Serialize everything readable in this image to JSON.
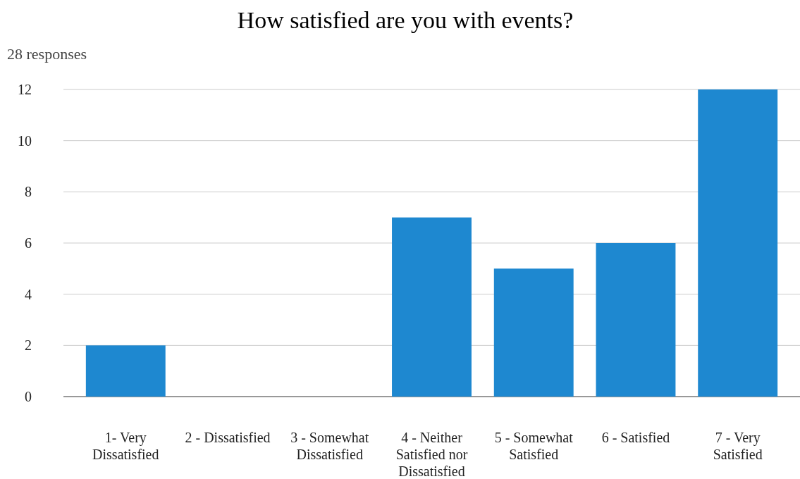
{
  "chart_data": {
    "type": "bar",
    "title": "How satisfied are you with events?",
    "subtitle": "28 responses",
    "categories": [
      "1- Very Dissatisfied",
      "2 - Dissatisfied",
      "3 - Somewhat Dissatisfied",
      "4 - Neither Satisfied nor Dissatisfied",
      "5 - Somewhat Satisfied",
      "6 - Satisfied",
      "7 - Very Satisfied"
    ],
    "values": [
      2,
      0,
      0,
      7,
      5,
      6,
      12
    ],
    "color": "#1e88d0",
    "ylim": [
      0,
      12
    ],
    "yticks": [
      0,
      2,
      4,
      6,
      8,
      10,
      12
    ],
    "grid": "y"
  }
}
